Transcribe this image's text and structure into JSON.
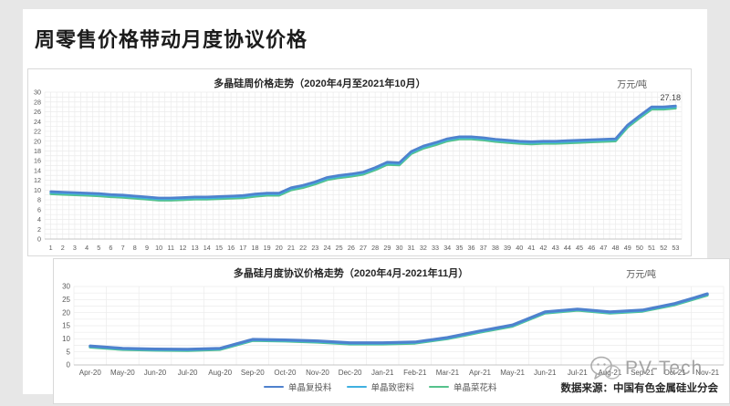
{
  "page_title": "周零售价格带动月度协议价格",
  "watermark": {
    "label": "PV-Tech"
  },
  "colors": {
    "series_blue": "#4f81cd",
    "series_lightblue": "#3fb0e0",
    "series_green": "#55c28c",
    "grid": "#ebebeb",
    "axis": "#c5c5c5",
    "tick_text": "#595959"
  },
  "chart_data": [
    {
      "type": "line",
      "title": "多晶硅周价格走势（2020年4月至2021年10月）",
      "unit": "万元/吨",
      "ylim": [
        0,
        30
      ],
      "ytick_step": 2,
      "grid": true,
      "end_label": "27.18",
      "categories": [
        1,
        2,
        3,
        4,
        5,
        6,
        7,
        8,
        9,
        10,
        11,
        12,
        13,
        14,
        15,
        16,
        17,
        18,
        19,
        20,
        21,
        22,
        23,
        24,
        25,
        26,
        27,
        28,
        29,
        30,
        31,
        32,
        33,
        34,
        35,
        36,
        37,
        38,
        39,
        40,
        41,
        42,
        43,
        44,
        45,
        46,
        47,
        48,
        49,
        50,
        51,
        52,
        53
      ],
      "series": [
        {
          "name": "单晶复投料",
          "color": "#4f81cd",
          "values": [
            9.7,
            9.6,
            9.5,
            9.4,
            9.3,
            9.1,
            9.0,
            8.8,
            8.6,
            8.4,
            8.4,
            8.5,
            8.6,
            8.6,
            8.7,
            8.8,
            8.9,
            9.2,
            9.4,
            9.4,
            10.5,
            11.0,
            11.7,
            12.6,
            13.0,
            13.3,
            13.7,
            14.6,
            15.7,
            15.6,
            17.9,
            19.0,
            19.7,
            20.5,
            20.9,
            20.9,
            20.7,
            20.4,
            20.2,
            20.0,
            19.9,
            20.0,
            20.0,
            20.1,
            20.2,
            20.3,
            20.4,
            20.5,
            23.3,
            25.2,
            27.0,
            27.0,
            27.18
          ]
        },
        {
          "name": "单晶致密料",
          "color": "#3fb0e0",
          "values": [
            9.5,
            9.4,
            9.3,
            9.2,
            9.1,
            8.9,
            8.8,
            8.6,
            8.4,
            8.2,
            8.2,
            8.3,
            8.4,
            8.4,
            8.5,
            8.6,
            8.7,
            9.0,
            9.2,
            9.2,
            10.3,
            10.8,
            11.5,
            12.4,
            12.8,
            13.1,
            13.5,
            14.4,
            15.5,
            15.4,
            17.7,
            18.8,
            19.5,
            20.3,
            20.7,
            20.7,
            20.5,
            20.2,
            20.0,
            19.8,
            19.7,
            19.8,
            19.8,
            19.9,
            20.0,
            20.1,
            20.2,
            20.3,
            23.1,
            25.0,
            26.8,
            26.8,
            27.0
          ]
        },
        {
          "name": "单晶菜花料",
          "color": "#55c28c",
          "values": [
            9.2,
            9.1,
            9.0,
            8.9,
            8.8,
            8.6,
            8.5,
            8.3,
            8.1,
            7.9,
            7.9,
            8.0,
            8.1,
            8.1,
            8.2,
            8.3,
            8.4,
            8.7,
            8.9,
            8.9,
            10.0,
            10.5,
            11.2,
            12.1,
            12.5,
            12.8,
            13.2,
            14.1,
            15.2,
            15.1,
            17.4,
            18.5,
            19.2,
            20.0,
            20.4,
            20.4,
            20.2,
            19.9,
            19.7,
            19.5,
            19.4,
            19.5,
            19.5,
            19.6,
            19.7,
            19.8,
            19.9,
            20.0,
            22.8,
            24.7,
            26.5,
            26.5,
            26.7
          ]
        }
      ]
    },
    {
      "type": "line",
      "title": "多晶硅月度协议价格走势（2020年4月-2021年11月）",
      "unit": "万元/吨",
      "ylim": [
        0,
        30
      ],
      "ytick_step": 5,
      "grid": true,
      "legend_position": "bottom",
      "source": "数据来源：中国有色金属硅业分会",
      "categories": [
        "Apr-20",
        "May-20",
        "Jun-20",
        "Jul-20",
        "Aug-20",
        "Sep-20",
        "Oct-20",
        "Nov-20",
        "Dec-20",
        "Jan-21",
        "Feb-21",
        "Mar-21",
        "Apr-21",
        "May-21",
        "Jun-21",
        "Jul-21",
        "Aug-21",
        "Sep-21",
        "Oct-21",
        "Nov-21"
      ],
      "series": [
        {
          "name": "单晶复投料",
          "color": "#4f81cd",
          "values": [
            7.3,
            6.4,
            6.1,
            6.0,
            6.4,
            9.8,
            9.6,
            9.2,
            8.5,
            8.5,
            8.8,
            10.5,
            13.0,
            15.3,
            20.3,
            21.4,
            20.3,
            21.0,
            23.5,
            27.2
          ]
        },
        {
          "name": "单晶致密料",
          "color": "#3fb0e0",
          "values": [
            7.1,
            6.2,
            5.9,
            5.8,
            6.2,
            9.6,
            9.4,
            9.0,
            8.3,
            8.3,
            8.6,
            10.3,
            12.8,
            15.1,
            20.1,
            21.2,
            20.1,
            20.8,
            23.3,
            27.0
          ]
        },
        {
          "name": "单晶菜花料",
          "color": "#55c28c",
          "values": [
            6.8,
            5.9,
            5.6,
            5.5,
            5.9,
            9.3,
            9.1,
            8.7,
            8.0,
            8.0,
            8.3,
            10.0,
            12.5,
            14.8,
            19.8,
            20.9,
            19.8,
            20.5,
            23.0,
            26.7
          ]
        }
      ]
    }
  ]
}
